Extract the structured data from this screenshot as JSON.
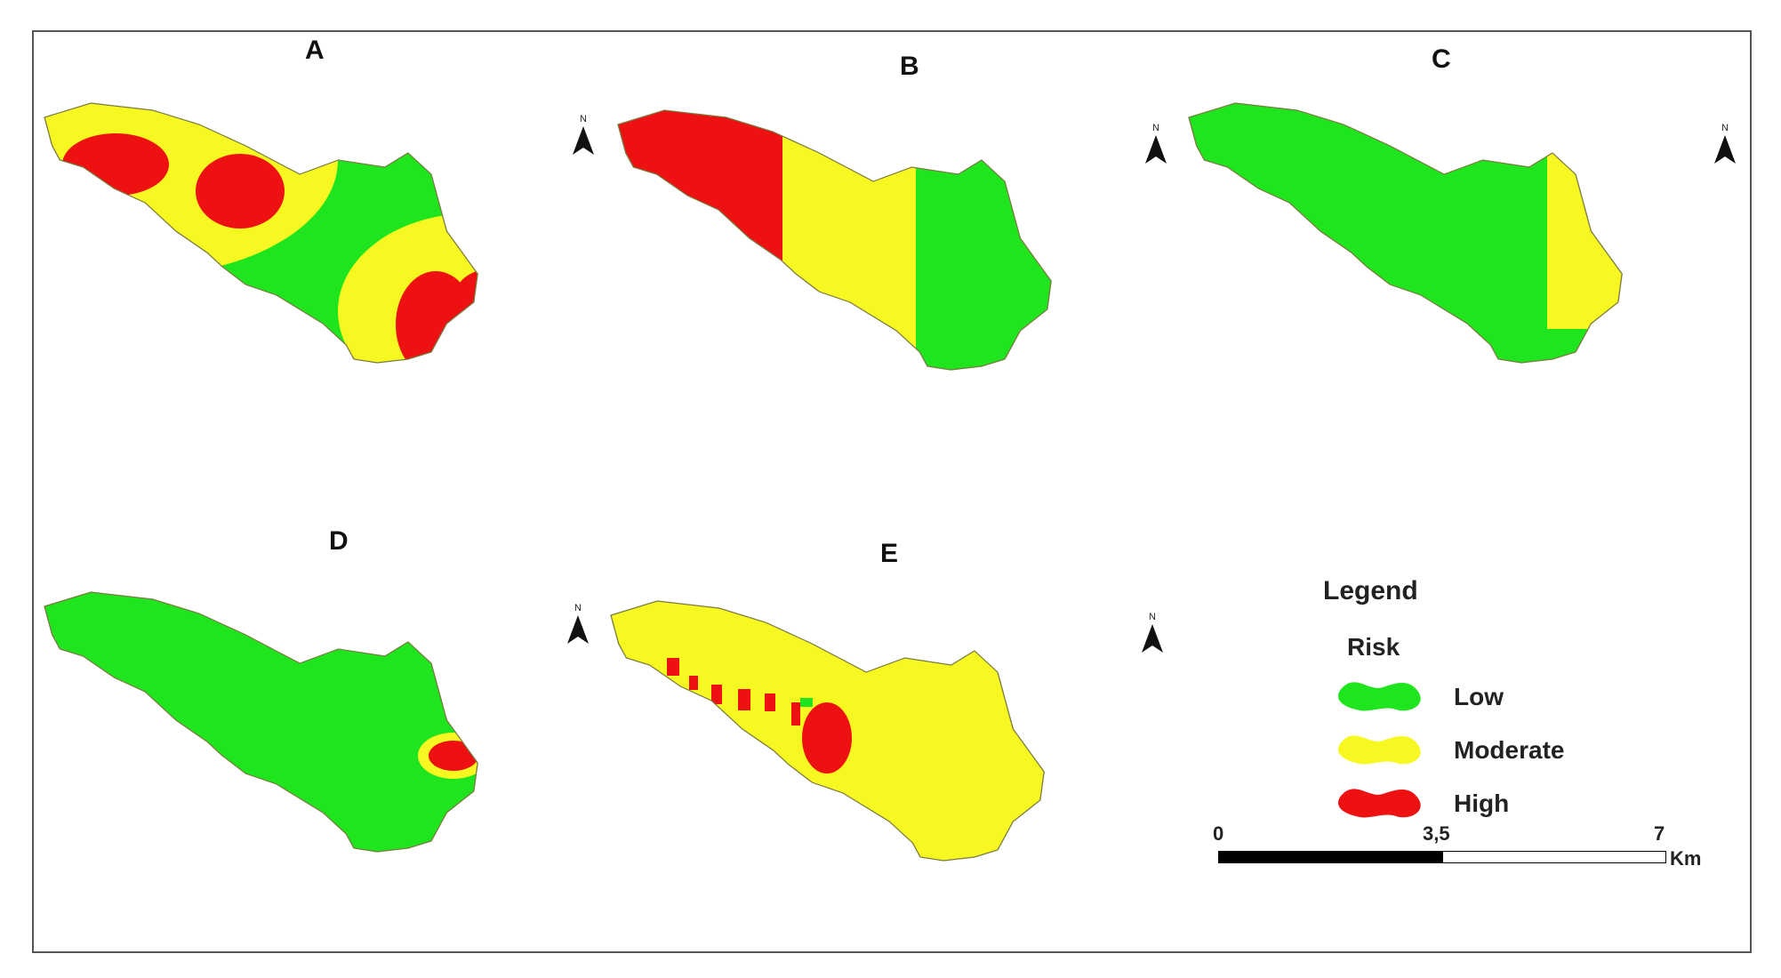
{
  "panels": [
    {
      "id": "A",
      "label": "A"
    },
    {
      "id": "B",
      "label": "B"
    },
    {
      "id": "C",
      "label": "C"
    },
    {
      "id": "D",
      "label": "D"
    },
    {
      "id": "E",
      "label": "E"
    }
  ],
  "north_arrow": {
    "letter": "N"
  },
  "legend": {
    "title": "Legend",
    "subtitle": "Risk",
    "items": [
      {
        "label": "Low",
        "color": "#1ee51e"
      },
      {
        "label": "Moderate",
        "color": "#f7f722"
      },
      {
        "label": "High",
        "color": "#ee1111"
      }
    ]
  },
  "scale_bar": {
    "ticks": [
      "0",
      "3,5",
      "7"
    ],
    "unit": "Km"
  },
  "colors": {
    "low": "#1ee51e",
    "moderate": "#f7f722",
    "high": "#ee1111",
    "boundary": "#7a7a40"
  }
}
